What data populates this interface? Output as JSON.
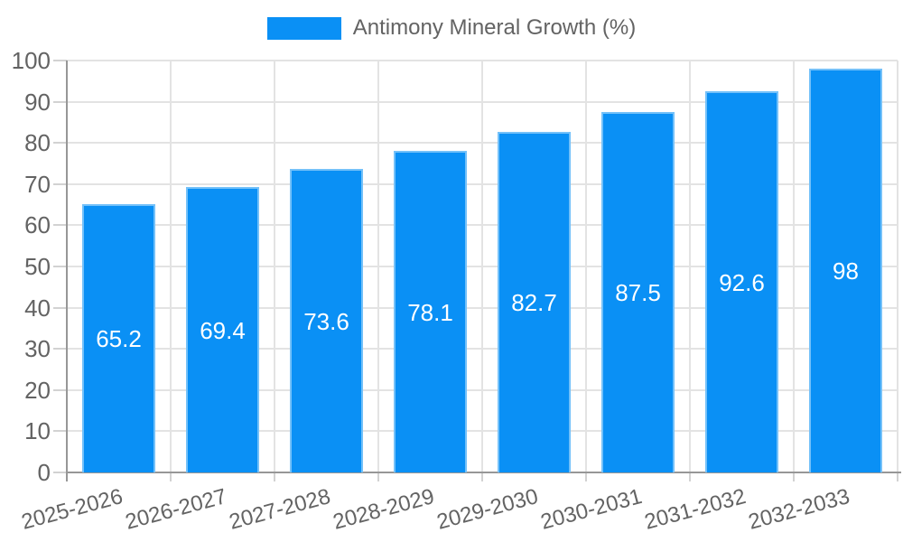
{
  "chart_data": {
    "type": "bar",
    "categories": [
      "2025-2026",
      "2026-2027",
      "2027-2028",
      "2028-2029",
      "2029-2030",
      "2030-2031",
      "2031-2032",
      "2032-2033"
    ],
    "series": [
      {
        "name": "Antimony Mineral Growth (%)",
        "values": [
          65.2,
          69.4,
          73.6,
          78.1,
          82.7,
          87.5,
          92.6,
          98
        ]
      }
    ],
    "title": "",
    "xlabel": "",
    "ylabel": "",
    "ylim": [
      0,
      100
    ],
    "ytick_step": 10,
    "y_tick_labels": [
      "0",
      "10",
      "20",
      "30",
      "40",
      "50",
      "60",
      "70",
      "80",
      "90",
      "100"
    ],
    "grid": true,
    "legend_position": "top",
    "value_label_position": "inside-center",
    "x_label_rotation_deg": -15,
    "colors": {
      "bar_fill": "#0a90f5",
      "bar_border": "#74c1f9",
      "value_label": "#ffffff",
      "axis_text": "#636363",
      "gridline": "#e3e3e3",
      "tick": "#d2d2d2",
      "axis_line": "#979797"
    }
  }
}
